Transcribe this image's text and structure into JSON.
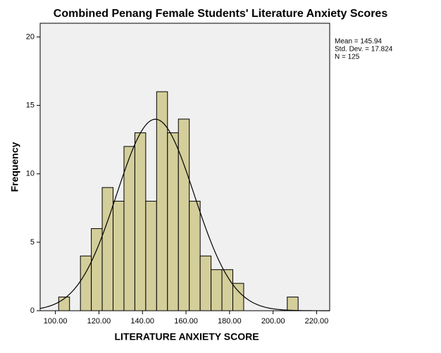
{
  "chart_data": {
    "type": "histogram",
    "title": "Combined Penang Female Students' Literature Anxiety Scores",
    "x_label": "LITERATURE ANXIETY SCORE",
    "y_label": "Frequency",
    "bins": [
      101.5,
      106.5,
      111.5,
      116.5,
      121.5,
      126.5,
      131.5,
      136.5,
      141.5,
      146.5,
      151.5,
      156.5,
      161.5,
      166.5,
      171.5,
      176.5,
      181.5,
      186.5,
      191.5,
      196.5,
      201.5,
      206.5,
      211.5
    ],
    "counts": [
      1,
      0,
      4,
      6,
      9,
      8,
      12,
      13,
      8,
      16,
      13,
      14,
      8,
      4,
      3,
      3,
      2,
      0,
      0,
      0,
      0,
      1
    ],
    "color": "#d3ce9a",
    "curve_color": "#000000",
    "stats": [
      {
        "value": 145.94,
        "label": "Mean = 145.94"
      },
      {
        "value": 17.824,
        "label": "Std. Dev. = 17.824"
      },
      {
        "value": 125,
        "label": "N = 125"
      }
    ],
    "xlim": [
      93,
      226
    ],
    "ylim": [
      0,
      21
    ],
    "xticks": [
      {
        "value": 100,
        "label": "100.00"
      },
      {
        "value": 120,
        "label": "120.00"
      },
      {
        "value": 140,
        "label": "140.00"
      },
      {
        "value": 160,
        "label": "160.00"
      },
      {
        "value": 180,
        "label": "180.00"
      },
      {
        "value": 200,
        "label": "200.00"
      },
      {
        "value": 220,
        "label": "220.00"
      }
    ],
    "yticks": [
      0,
      5,
      10,
      15,
      20
    ]
  }
}
